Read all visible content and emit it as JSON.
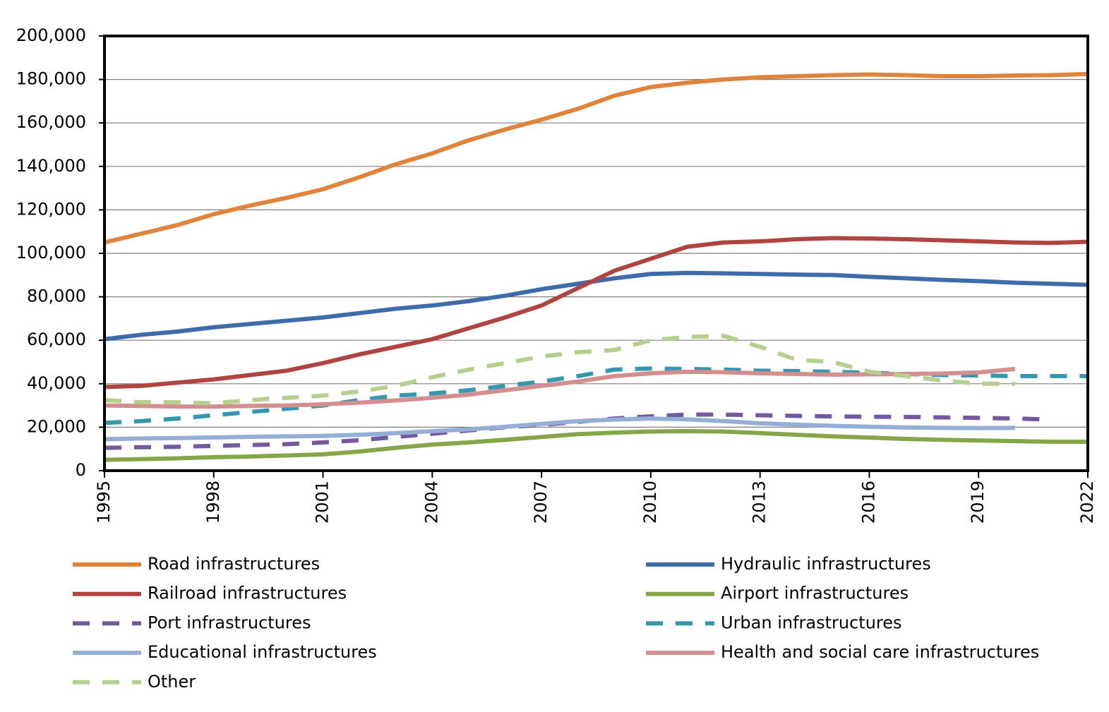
{
  "chart_data": {
    "type": "line",
    "x": [
      1995,
      1996,
      1997,
      1998,
      1999,
      2000,
      2001,
      2002,
      2003,
      2004,
      2005,
      2006,
      2007,
      2008,
      2009,
      2010,
      2011,
      2012,
      2013,
      2014,
      2015,
      2016,
      2017,
      2018,
      2019,
      2020,
      2021,
      2022
    ],
    "xlim": [
      1995,
      2022
    ],
    "xticks": [
      1995,
      1998,
      2001,
      2004,
      2007,
      2010,
      2013,
      2016,
      2019,
      2022
    ],
    "ylim": [
      0,
      200000
    ],
    "yticks": [
      0,
      {
        "value": 20000,
        "label": "20,000"
      },
      {
        "value": 40000,
        "label": "40,000"
      },
      {
        "value": 60000,
        "label": "60,000"
      },
      {
        "value": 80000,
        "label": "80,000"
      },
      {
        "value": 100000,
        "label": "100,000"
      },
      {
        "value": 120000,
        "label": "120,000"
      },
      {
        "value": 140000,
        "label": "140,000"
      },
      {
        "value": 160000,
        "label": "160,000"
      },
      {
        "value": 180000,
        "label": "180,000"
      },
      {
        "value": 200000,
        "label": "200,000"
      }
    ],
    "grid": true,
    "legend": "bottom",
    "series": [
      {
        "name": "Road infrastructures",
        "color": "#E0843B",
        "style": "solid",
        "values": [
          105000,
          109000,
          113000,
          118000,
          122000,
          125500,
          129500,
          135000,
          141000,
          146000,
          152000,
          157000,
          161500,
          166500,
          172500,
          176500,
          178500,
          180000,
          181000,
          181500,
          182000,
          182300,
          182000,
          181500,
          181500,
          181800,
          182000,
          182500
        ]
      },
      {
        "name": "Hydraulic infrastructures",
        "color": "#3E6CAA",
        "style": "solid",
        "values": [
          60500,
          62500,
          64000,
          66000,
          67500,
          69000,
          70500,
          72500,
          74500,
          76000,
          78000,
          80500,
          83500,
          86000,
          88500,
          90500,
          91000,
          90800,
          90500,
          90200,
          90000,
          89200,
          88500,
          87800,
          87200,
          86500,
          86000,
          85500
        ]
      },
      {
        "name": "Railroad infrastructures",
        "color": "#B04441",
        "style": "solid",
        "values": [
          38500,
          39000,
          40500,
          42000,
          44000,
          46000,
          49500,
          53500,
          57000,
          60500,
          65500,
          70500,
          76000,
          84000,
          92000,
          97500,
          103000,
          105000,
          105500,
          106500,
          107000,
          106800,
          106500,
          106000,
          105500,
          105000,
          104800,
          105300
        ]
      },
      {
        "name": "Airport infrastructures",
        "color": "#85A549",
        "style": "solid",
        "values": [
          5000,
          5300,
          5700,
          6200,
          6500,
          7000,
          7500,
          8800,
          10500,
          12000,
          13000,
          14200,
          15500,
          16800,
          17500,
          18000,
          18200,
          18000,
          17300,
          16500,
          15800,
          15200,
          14600,
          14200,
          13900,
          13600,
          13300,
          13300
        ]
      },
      {
        "name": "Port infrastructures",
        "color": "#7559A0",
        "style": "dashed",
        "values": [
          10500,
          10800,
          11000,
          11400,
          11800,
          12200,
          13000,
          14000,
          15500,
          17000,
          18500,
          20000,
          21000,
          22500,
          24000,
          25000,
          25800,
          25800,
          25500,
          25200,
          25000,
          24800,
          24700,
          24500,
          24300,
          24000,
          23500,
          null
        ]
      },
      {
        "name": "Urban infrastructures",
        "color": "#3597AE",
        "style": "dashed",
        "values": [
          22000,
          22800,
          24000,
          25500,
          27000,
          28500,
          30000,
          32500,
          34500,
          35500,
          37000,
          39000,
          41000,
          43500,
          46500,
          47000,
          46800,
          46500,
          46000,
          45800,
          45500,
          45000,
          44500,
          44000,
          43800,
          43500,
          43500,
          43500
        ]
      },
      {
        "name": "Educational infrastructures",
        "color": "#94AED6",
        "style": "solid",
        "values": [
          14500,
          14800,
          15000,
          15300,
          15600,
          15800,
          16000,
          16500,
          17300,
          18200,
          19000,
          20200,
          21500,
          22800,
          23500,
          24000,
          23600,
          22800,
          21800,
          21200,
          20600,
          20200,
          19900,
          19700,
          19600,
          19700,
          null,
          null
        ]
      },
      {
        "name": "Health and social care infrastructures",
        "color": "#D48E8E",
        "style": "solid",
        "values": [
          30000,
          29800,
          29500,
          29500,
          29800,
          30000,
          30500,
          31300,
          32300,
          33500,
          35000,
          37000,
          39000,
          41000,
          43500,
          44800,
          45500,
          45300,
          44800,
          44500,
          44200,
          44300,
          44500,
          44700,
          45200,
          46800,
          null,
          null
        ]
      },
      {
        "name": "Other",
        "color": "#B5CF8E",
        "style": "dashed",
        "values": [
          32500,
          31500,
          31500,
          31000,
          32500,
          33500,
          34500,
          36500,
          39000,
          43000,
          46500,
          49500,
          52500,
          54500,
          55500,
          60000,
          61500,
          62000,
          57000,
          51000,
          50000,
          45500,
          43500,
          41500,
          40000,
          40000,
          null,
          null
        ]
      }
    ]
  }
}
